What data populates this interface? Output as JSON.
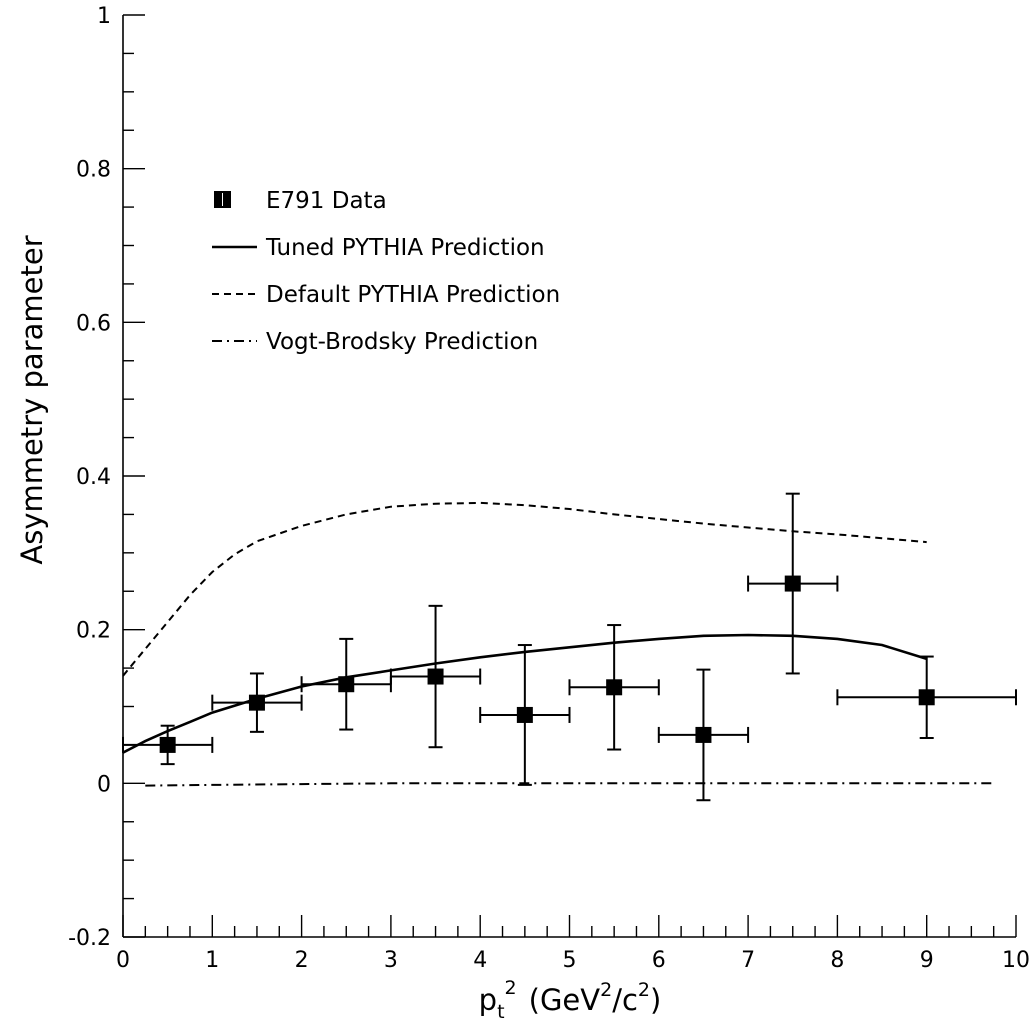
{
  "chart_data": {
    "type": "scatter",
    "xlabel": {
      "base": "p",
      "sub": "t",
      "sup": "2",
      "unit_open": "(GeV",
      "unit_sup1": "2",
      "unit_mid": "/c",
      "unit_sup2": "2",
      "unit_close": ")"
    },
    "ylabel": "Asymmetry parameter",
    "xlim": [
      0,
      10
    ],
    "ylim": [
      -0.2,
      1.0
    ],
    "x_ticks": [
      0,
      1,
      2,
      3,
      4,
      5,
      6,
      7,
      8,
      9,
      10
    ],
    "y_ticks": [
      -0.2,
      0,
      0.2,
      0.4,
      0.6,
      0.8,
      1
    ],
    "x_tick_labels": [
      "0",
      "1",
      "2",
      "3",
      "4",
      "5",
      "6",
      "7",
      "8",
      "9",
      "10"
    ],
    "y_tick_labels": [
      "-0.2",
      "0",
      "0.2",
      "0.4",
      "0.6",
      "0.8",
      "1"
    ],
    "grid": false,
    "legend_position": "upper-left",
    "series": [
      {
        "name": "E791 Data",
        "style": "square-markers-with-error-bars",
        "color": "#000000",
        "points": [
          {
            "x": 0.5,
            "y": 0.05,
            "xerr_lo": 0.5,
            "xerr_hi": 0.5,
            "yerr_lo": 0.025,
            "yerr_hi": 0.025
          },
          {
            "x": 1.5,
            "y": 0.105,
            "xerr_lo": 0.5,
            "xerr_hi": 0.5,
            "yerr_lo": 0.038,
            "yerr_hi": 0.038
          },
          {
            "x": 2.5,
            "y": 0.129,
            "xerr_lo": 0.5,
            "xerr_hi": 0.5,
            "yerr_lo": 0.059,
            "yerr_hi": 0.059
          },
          {
            "x": 3.5,
            "y": 0.139,
            "xerr_lo": 0.5,
            "xerr_hi": 0.5,
            "yerr_lo": 0.092,
            "yerr_hi": 0.092
          },
          {
            "x": 4.5,
            "y": 0.089,
            "xerr_lo": 0.5,
            "xerr_hi": 0.5,
            "yerr_lo": 0.091,
            "yerr_hi": 0.091
          },
          {
            "x": 5.5,
            "y": 0.125,
            "xerr_lo": 0.5,
            "xerr_hi": 0.5,
            "yerr_lo": 0.081,
            "yerr_hi": 0.081
          },
          {
            "x": 6.5,
            "y": 0.063,
            "xerr_lo": 0.5,
            "xerr_hi": 0.5,
            "yerr_lo": 0.085,
            "yerr_hi": 0.085
          },
          {
            "x": 7.5,
            "y": 0.26,
            "xerr_lo": 0.5,
            "xerr_hi": 0.5,
            "yerr_lo": 0.117,
            "yerr_hi": 0.117
          },
          {
            "x": 9.0,
            "y": 0.112,
            "xerr_lo": 1.0,
            "xerr_hi": 1.0,
            "yerr_lo": 0.053,
            "yerr_hi": 0.053
          }
        ]
      },
      {
        "name": "Tuned PYTHIA Prediction",
        "style": "solid",
        "color": "#000000",
        "x": [
          0,
          0.25,
          0.5,
          0.75,
          1,
          1.5,
          2,
          2.5,
          3,
          3.5,
          4,
          4.5,
          5,
          5.5,
          6,
          6.5,
          7,
          7.5,
          8,
          8.5,
          9
        ],
        "y": [
          0.04,
          0.055,
          0.068,
          0.08,
          0.092,
          0.11,
          0.126,
          0.138,
          0.147,
          0.156,
          0.164,
          0.171,
          0.177,
          0.183,
          0.188,
          0.192,
          0.193,
          0.192,
          0.188,
          0.18,
          0.162
        ]
      },
      {
        "name": "Default PYTHIA Prediction",
        "style": "dashed",
        "color": "#000000",
        "x": [
          0,
          0.25,
          0.5,
          0.75,
          1,
          1.25,
          1.5,
          2,
          2.5,
          3,
          3.5,
          4,
          4.5,
          5,
          5.5,
          6,
          6.5,
          7,
          7.5,
          8,
          8.5,
          9
        ],
        "y": [
          0.14,
          0.175,
          0.21,
          0.245,
          0.275,
          0.298,
          0.315,
          0.335,
          0.35,
          0.36,
          0.364,
          0.365,
          0.362,
          0.357,
          0.35,
          0.344,
          0.338,
          0.333,
          0.328,
          0.324,
          0.319,
          0.314
        ]
      },
      {
        "name": "Vogt-Brodsky  Prediction",
        "style": "dash-dot",
        "color": "#000000",
        "x": [
          0.25,
          1,
          2,
          3,
          4,
          5,
          6,
          7,
          8,
          9,
          9.75
        ],
        "y": [
          -0.003,
          -0.002,
          -0.001,
          0,
          0,
          0,
          0,
          0,
          0,
          0,
          0
        ]
      }
    ],
    "legend": [
      {
        "label": "E791 Data",
        "marker": "square"
      },
      {
        "label": "Tuned PYTHIA Prediction",
        "marker": "solid"
      },
      {
        "label": "Default PYTHIA Prediction",
        "marker": "dashed"
      },
      {
        "label": "Vogt-Brodsky  Prediction",
        "marker": "dash-dot"
      }
    ]
  }
}
